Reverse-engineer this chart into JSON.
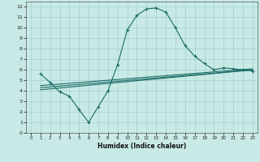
{
  "xlabel": "Humidex (Indice chaleur)",
  "bg_color": "#c8eae6",
  "grid_color": "#a0d0cc",
  "line_color": "#1a6b65",
  "xlim": [
    -0.5,
    23.5
  ],
  "ylim": [
    0,
    12.5
  ],
  "xticks": [
    0,
    1,
    2,
    3,
    4,
    5,
    6,
    7,
    8,
    9,
    10,
    11,
    12,
    13,
    14,
    15,
    16,
    17,
    18,
    19,
    20,
    21,
    22,
    23
  ],
  "yticks": [
    0,
    1,
    2,
    3,
    4,
    5,
    6,
    7,
    8,
    9,
    10,
    11,
    12
  ],
  "line1_x": [
    1,
    2,
    3,
    4,
    5,
    6,
    7,
    8,
    9,
    10,
    11,
    12,
    13,
    14,
    15,
    16,
    17,
    18,
    19,
    20,
    21,
    22,
    23
  ],
  "line1_y": [
    5.6,
    4.8,
    3.9,
    3.5,
    2.2,
    1.0,
    2.5,
    4.0,
    6.5,
    9.8,
    11.2,
    11.8,
    11.9,
    11.5,
    10.0,
    8.3,
    7.3,
    6.6,
    6.0,
    6.2,
    6.1,
    6.0,
    5.9
  ],
  "line2_x": [
    1,
    23
  ],
  "line2_y": [
    4.1,
    6.0
  ],
  "line3_x": [
    1,
    23
  ],
  "line3_y": [
    4.3,
    6.0
  ],
  "line4_x": [
    1,
    23
  ],
  "line4_y": [
    4.5,
    6.1
  ]
}
